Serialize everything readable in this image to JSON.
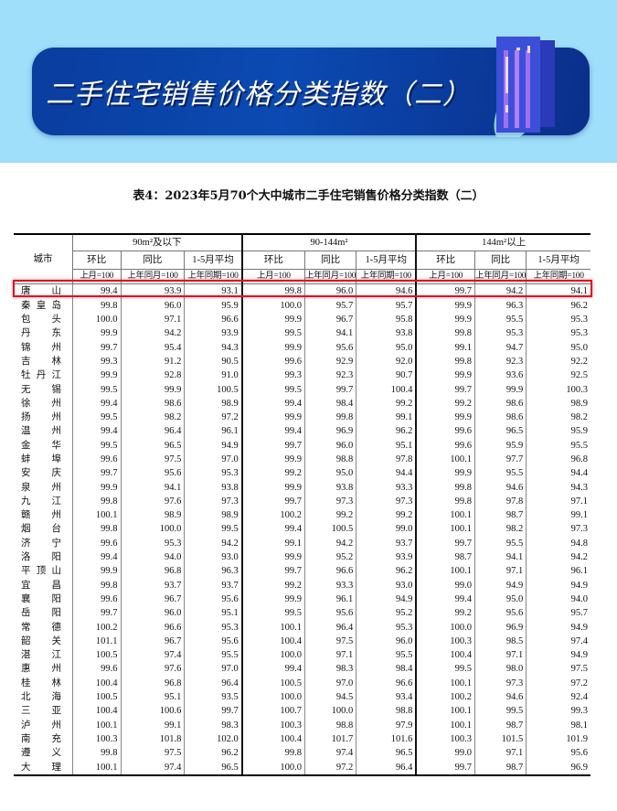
{
  "banner": {
    "title": "二手住宅销售价格分类指数（二）",
    "bg_color": "#9fdffa",
    "panel_color": "#0b4ab2"
  },
  "table_title": "表4：2023年5月70个大中城市二手住宅销售价格分类指数（二）",
  "headers": {
    "city": "城市",
    "groups": [
      "90m²及以下",
      "90-144m²",
      "144m²以上"
    ],
    "sub": [
      "环比",
      "同比",
      "1-5月平均"
    ],
    "base": [
      "上月=100",
      "上年同月=100",
      "上年同期=100"
    ]
  },
  "highlight_color": "#e01020",
  "rows": [
    {
      "city": "唐山",
      "v": [
        "99.4",
        "93.9",
        "93.1",
        "99.8",
        "96.0",
        "94.6",
        "99.7",
        "94.2",
        "94.1"
      ]
    },
    {
      "city": "秦皇岛",
      "v": [
        "99.8",
        "96.0",
        "95.9",
        "100.0",
        "95.7",
        "95.7",
        "99.9",
        "96.3",
        "96.2"
      ]
    },
    {
      "city": "包头",
      "v": [
        "100.0",
        "97.1",
        "96.6",
        "99.9",
        "96.7",
        "95.8",
        "99.9",
        "95.5",
        "95.3"
      ]
    },
    {
      "city": "丹东",
      "v": [
        "99.9",
        "94.2",
        "93.9",
        "99.5",
        "94.1",
        "93.8",
        "99.8",
        "95.3",
        "95.3"
      ]
    },
    {
      "city": "锦州",
      "v": [
        "99.7",
        "95.4",
        "94.3",
        "99.9",
        "95.6",
        "95.0",
        "99.1",
        "94.7",
        "95.0"
      ]
    },
    {
      "city": "吉林",
      "v": [
        "99.3",
        "91.2",
        "90.5",
        "99.6",
        "92.9",
        "92.0",
        "99.8",
        "92.3",
        "92.2"
      ]
    },
    {
      "city": "牡丹江",
      "v": [
        "99.9",
        "92.8",
        "91.0",
        "99.3",
        "92.3",
        "90.7",
        "99.9",
        "93.6",
        "92.5"
      ]
    },
    {
      "city": "无锡",
      "v": [
        "99.5",
        "99.9",
        "100.5",
        "99.5",
        "99.7",
        "100.4",
        "99.7",
        "99.9",
        "100.3"
      ]
    },
    {
      "city": "徐州",
      "v": [
        "99.4",
        "98.6",
        "98.9",
        "99.4",
        "98.4",
        "99.2",
        "99.2",
        "98.6",
        "98.9"
      ]
    },
    {
      "city": "扬州",
      "v": [
        "99.5",
        "98.2",
        "97.2",
        "99.9",
        "99.8",
        "99.1",
        "99.9",
        "98.6",
        "98.2"
      ]
    },
    {
      "city": "温州",
      "v": [
        "99.4",
        "96.4",
        "96.1",
        "99.4",
        "96.9",
        "96.2",
        "99.6",
        "96.5",
        "95.9"
      ]
    },
    {
      "city": "金华",
      "v": [
        "99.5",
        "96.5",
        "94.9",
        "99.7",
        "96.0",
        "95.1",
        "99.6",
        "95.9",
        "95.5"
      ]
    },
    {
      "city": "蚌埠",
      "v": [
        "99.6",
        "97.5",
        "97.0",
        "99.9",
        "98.8",
        "97.8",
        "100.1",
        "97.7",
        "96.8"
      ]
    },
    {
      "city": "安庆",
      "v": [
        "99.7",
        "95.6",
        "95.3",
        "99.2",
        "95.0",
        "94.4",
        "99.9",
        "95.5",
        "94.4"
      ]
    },
    {
      "city": "泉州",
      "v": [
        "99.9",
        "94.1",
        "93.8",
        "99.9",
        "93.8",
        "93.3",
        "99.8",
        "94.6",
        "94.3"
      ]
    },
    {
      "city": "九江",
      "v": [
        "99.8",
        "97.6",
        "97.3",
        "99.7",
        "97.3",
        "97.3",
        "99.8",
        "97.8",
        "97.1"
      ]
    },
    {
      "city": "赣州",
      "v": [
        "100.1",
        "98.9",
        "98.9",
        "100.2",
        "99.2",
        "99.2",
        "100.1",
        "98.7",
        "99.1"
      ]
    },
    {
      "city": "烟台",
      "v": [
        "99.8",
        "100.0",
        "99.5",
        "99.4",
        "100.5",
        "99.0",
        "100.1",
        "98.2",
        "97.3"
      ]
    },
    {
      "city": "济宁",
      "v": [
        "99.6",
        "95.3",
        "94.2",
        "99.1",
        "94.2",
        "93.7",
        "99.7",
        "95.5",
        "94.8"
      ]
    },
    {
      "city": "洛阳",
      "v": [
        "99.4",
        "94.0",
        "93.0",
        "99.9",
        "95.2",
        "93.9",
        "98.7",
        "94.1",
        "94.2"
      ]
    },
    {
      "city": "平顶山",
      "v": [
        "99.9",
        "96.8",
        "96.3",
        "99.7",
        "96.6",
        "96.2",
        "100.1",
        "97.1",
        "96.1"
      ]
    },
    {
      "city": "宜昌",
      "v": [
        "99.8",
        "93.7",
        "93.7",
        "99.2",
        "93.3",
        "93.0",
        "99.0",
        "94.9",
        "94.9"
      ]
    },
    {
      "city": "襄阳",
      "v": [
        "99.6",
        "96.7",
        "95.6",
        "99.9",
        "96.1",
        "94.9",
        "99.4",
        "95.0",
        "94.0"
      ]
    },
    {
      "city": "岳阳",
      "v": [
        "99.7",
        "96.0",
        "95.1",
        "99.5",
        "95.6",
        "95.2",
        "99.2",
        "95.6",
        "95.7"
      ]
    },
    {
      "city": "常德",
      "v": [
        "100.2",
        "96.6",
        "95.3",
        "100.1",
        "96.4",
        "95.3",
        "100.0",
        "96.9",
        "94.9"
      ]
    },
    {
      "city": "韶关",
      "v": [
        "101.1",
        "96.7",
        "95.6",
        "100.4",
        "97.5",
        "96.0",
        "100.3",
        "98.5",
        "97.4"
      ]
    },
    {
      "city": "湛江",
      "v": [
        "100.5",
        "97.4",
        "95.5",
        "100.0",
        "97.1",
        "95.5",
        "100.4",
        "97.1",
        "94.9"
      ]
    },
    {
      "city": "惠州",
      "v": [
        "99.6",
        "97.6",
        "97.0",
        "99.4",
        "98.3",
        "98.4",
        "99.5",
        "98.0",
        "97.5"
      ]
    },
    {
      "city": "桂林",
      "v": [
        "100.4",
        "96.8",
        "96.4",
        "100.5",
        "97.0",
        "96.6",
        "100.1",
        "97.3",
        "97.2"
      ]
    },
    {
      "city": "北海",
      "v": [
        "100.5",
        "95.1",
        "93.5",
        "100.0",
        "94.5",
        "93.4",
        "100.2",
        "94.6",
        "92.4"
      ]
    },
    {
      "city": "三亚",
      "v": [
        "100.4",
        "100.6",
        "99.7",
        "100.7",
        "100.0",
        "98.8",
        "100.1",
        "99.5",
        "99.3"
      ]
    },
    {
      "city": "泸州",
      "v": [
        "100.1",
        "99.1",
        "98.3",
        "100.3",
        "98.8",
        "97.9",
        "100.1",
        "98.7",
        "98.1"
      ]
    },
    {
      "city": "南充",
      "v": [
        "100.3",
        "101.8",
        "102.0",
        "100.4",
        "101.7",
        "101.6",
        "100.3",
        "101.5",
        "101.9"
      ]
    },
    {
      "city": "遵义",
      "v": [
        "99.8",
        "97.5",
        "96.2",
        "99.8",
        "97.4",
        "96.5",
        "99.0",
        "97.1",
        "95.6"
      ]
    },
    {
      "city": "大理",
      "v": [
        "100.1",
        "97.4",
        "96.5",
        "100.0",
        "97.2",
        "96.4",
        "99.7",
        "98.7",
        "96.9"
      ]
    }
  ]
}
